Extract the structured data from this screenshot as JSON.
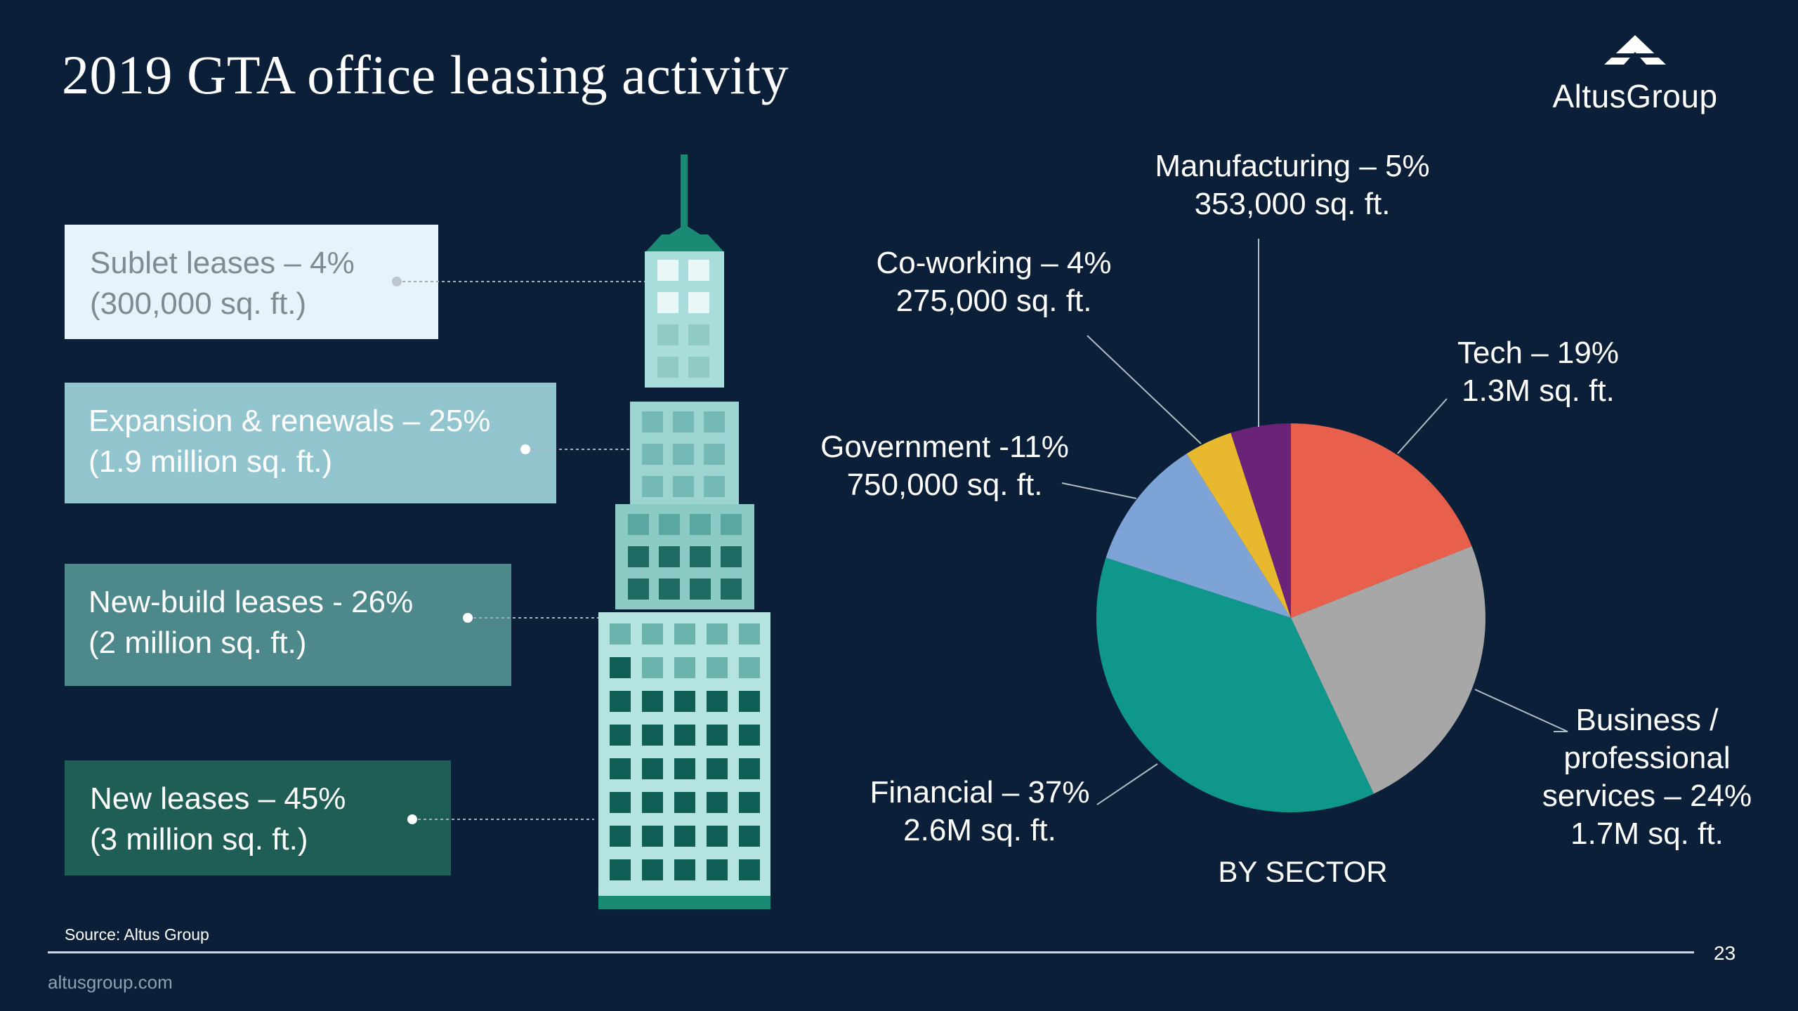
{
  "title": "2019 GTA office leasing activity",
  "logo": {
    "text": "AltusGroup"
  },
  "lease_types": [
    {
      "id": "sublet",
      "line1": "Sublet leases – 4%",
      "line2": "(300,000 sq. ft.)",
      "color": "#e6f3fb"
    },
    {
      "id": "expansion",
      "line1": "Expansion & renewals – 25%",
      "line2": "(1.9 million sq. ft.)",
      "color": "#93c5cf"
    },
    {
      "id": "newbuild",
      "line1": "New-build leases - 26%",
      "line2": "(2 million sq. ft.)",
      "color": "#4d888a"
    },
    {
      "id": "newleases",
      "line1": "New leases – 45%",
      "line2": "(3 million sq. ft.)",
      "color": "#1e5e55"
    }
  ],
  "chart_data": {
    "type": "pie",
    "title": "BY SECTOR",
    "slices": [
      {
        "name": "Tech",
        "percent": 19,
        "sqft": "1.3M sq. ft.",
        "color": "#e8604c",
        "label_line1": "Tech – 19%",
        "label_line2": "1.3M sq. ft."
      },
      {
        "name": "Business / professional services",
        "percent": 24,
        "sqft": "1.7M sq. ft.",
        "color": "#a7a7a7",
        "label_line1": "Business /",
        "label_line2": "professional",
        "label_line3": "services – 24%",
        "label_line4": "1.7M sq. ft."
      },
      {
        "name": "Financial",
        "percent": 37,
        "sqft": "2.6M sq. ft.",
        "color": "#0f978b",
        "label_line1": "Financial – 37%",
        "label_line2": "2.6M sq. ft."
      },
      {
        "name": "Government",
        "percent": 11,
        "sqft": "750,000 sq. ft.",
        "color": "#7ea3d6",
        "label_line1": "Government -11%",
        "label_line2": "750,000 sq. ft."
      },
      {
        "name": "Co-working",
        "percent": 4,
        "sqft": "275,000 sq. ft.",
        "color": "#e8b92e",
        "label_line1": "Co-working – 4%",
        "label_line2": "275,000 sq. ft."
      },
      {
        "name": "Manufacturing",
        "percent": 5,
        "sqft": "353,000 sq. ft.",
        "color": "#6b2279",
        "label_line1": "Manufacturing – 5%",
        "label_line2": "353,000 sq. ft."
      }
    ]
  },
  "footer": {
    "source": "Source:  Altus Group",
    "site": "altusgroup.com",
    "page": "23"
  }
}
